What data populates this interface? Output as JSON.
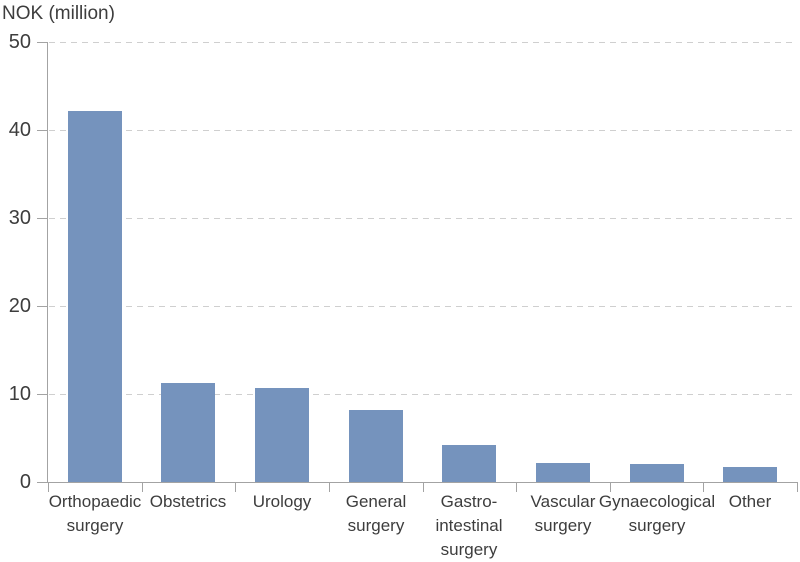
{
  "chart_data": {
    "type": "bar",
    "title": "NOK (million)",
    "ylabel": "NOK (million)",
    "xlabel": "",
    "categories": [
      "Orthopaedic surgery",
      "Obstetrics",
      "Urology",
      "General surgery",
      "Gastro-intestinal surgery",
      "Vascular surgery",
      "Gynaecological surgery",
      "Other"
    ],
    "category_label_lines": [
      [
        "Orthopaedic",
        "surgery"
      ],
      [
        "Obstetrics"
      ],
      [
        "Urology"
      ],
      [
        "General",
        "surgery"
      ],
      [
        "Gastro-",
        "intestinal",
        "surgery"
      ],
      [
        "Vascular",
        "surgery"
      ],
      [
        "Gynaecological",
        "surgery"
      ],
      [
        "Other"
      ]
    ],
    "values": [
      42.2,
      11.2,
      10.7,
      8.2,
      4.2,
      2.2,
      2.0,
      1.7
    ],
    "ylim": [
      0,
      50
    ],
    "yticks": [
      0,
      10,
      20,
      30,
      40,
      50
    ],
    "grid": "horizontal-dashed",
    "legend": "none",
    "bar_color": "#7593bd",
    "axis_color": "#a3a3a3",
    "grid_color": "#cfcfcf",
    "text_color": "#3d3d3d"
  }
}
